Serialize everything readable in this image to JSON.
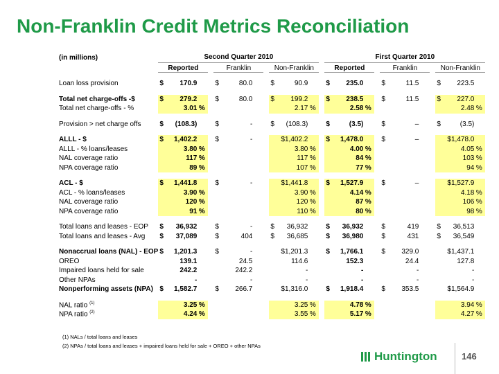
{
  "title": "Non-Franklin Credit Metrics Reconciliation",
  "table": {
    "units": "(in millions)",
    "periods": [
      "Second Quarter 2010",
      "First Quarter 2010"
    ],
    "columns": [
      "Reported",
      "Franklin",
      "Non-Franklin",
      "Reported",
      "Franklin",
      "Non-Franklin"
    ],
    "groups": [
      {
        "rows": [
          {
            "label": "Loan loss provision",
            "cells": [
              {
                "c": "$",
                "v": "170.9"
              },
              {
                "c": "$",
                "v": "80.0"
              },
              {
                "c": "$",
                "v": "90.9"
              },
              {
                "c": "$",
                "v": "235.0"
              },
              {
                "c": "$",
                "v": "11.5"
              },
              {
                "c": "$",
                "v": "223.5"
              }
            ]
          }
        ]
      },
      {
        "rows": [
          {
            "label": "Total net charge-offs -$",
            "bold": true,
            "highlight": true,
            "cells": [
              {
                "c": "$",
                "v": "279.2"
              },
              {
                "c": "$",
                "v": "80.0"
              },
              {
                "c": "$",
                "v": "199.2"
              },
              {
                "c": "$",
                "v": "238.5"
              },
              {
                "c": "$",
                "v": "11.5"
              },
              {
                "c": "$",
                "v": "227.0"
              }
            ]
          },
          {
            "label": "Total net charge-offs - %",
            "highlight": true,
            "cells": [
              {
                "v": "3.01",
                "u": "%"
              },
              null,
              {
                "v": "2.17",
                "u": "%"
              },
              {
                "v": "2.58",
                "u": "%"
              },
              null,
              {
                "v": "2.48",
                "u": "%"
              }
            ]
          }
        ]
      },
      {
        "rows": [
          {
            "label": "Provision > net charge offs",
            "cells": [
              {
                "c": "$",
                "v": "(108.3)"
              },
              {
                "c": "$",
                "v": "-"
              },
              {
                "c": "$",
                "v": "(108.3)"
              },
              {
                "c": "$",
                "v": "(3.5)"
              },
              {
                "c": "$",
                "v": "–"
              },
              {
                "c": "$",
                "v": "(3.5)"
              }
            ]
          }
        ]
      },
      {
        "rows": [
          {
            "label": "ALLL - $",
            "bold": true,
            "highlight": true,
            "cells": [
              {
                "c": "$",
                "v": "1,402.2"
              },
              {
                "c": "$",
                "v": "-"
              },
              {
                "v": "$1,402.2"
              },
              {
                "c": "$",
                "v": "1,478.0"
              },
              {
                "c": "$",
                "v": "–"
              },
              {
                "v": "$1,478.0"
              }
            ]
          },
          {
            "label": "ALLL - % loans/leases",
            "highlight": true,
            "cells": [
              {
                "v": "3.80",
                "u": "%"
              },
              null,
              {
                "v": "3.80",
                "u": "%"
              },
              {
                "v": "4.00",
                "u": "%"
              },
              null,
              {
                "v": "4.05",
                "u": "%"
              }
            ]
          },
          {
            "label": "NAL coverage ratio",
            "highlight": true,
            "cells": [
              {
                "v": "117",
                "u": "%"
              },
              null,
              {
                "v": "117",
                "u": "%"
              },
              {
                "v": "84",
                "u": "%"
              },
              null,
              {
                "v": "103",
                "u": "%"
              }
            ]
          },
          {
            "label": "NPA coverage ratio",
            "highlight": true,
            "cells": [
              {
                "v": "89",
                "u": "%"
              },
              null,
              {
                "v": "107",
                "u": "%"
              },
              {
                "v": "77",
                "u": "%"
              },
              null,
              {
                "v": "94",
                "u": "%"
              }
            ]
          }
        ]
      },
      {
        "rows": [
          {
            "label": "ACL - $",
            "bold": true,
            "highlight": true,
            "cells": [
              {
                "c": "$",
                "v": "1,441.8"
              },
              {
                "c": "$",
                "v": "-"
              },
              {
                "v": "$1,441.8"
              },
              {
                "c": "$",
                "v": "1,527.9"
              },
              {
                "c": "$",
                "v": "–"
              },
              {
                "v": "$1,527.9"
              }
            ]
          },
          {
            "label": "ACL - % loans/leases",
            "highlight": true,
            "cells": [
              {
                "v": "3.90",
                "u": "%"
              },
              null,
              {
                "v": "3.90",
                "u": "%"
              },
              {
                "v": "4.14",
                "u": "%"
              },
              null,
              {
                "v": "4.18",
                "u": "%"
              }
            ]
          },
          {
            "label": "NAL coverage ratio",
            "highlight": true,
            "cells": [
              {
                "v": "120",
                "u": "%"
              },
              null,
              {
                "v": "120",
                "u": "%"
              },
              {
                "v": "87",
                "u": "%"
              },
              null,
              {
                "v": "106",
                "u": "%"
              }
            ]
          },
          {
            "label": "NPA coverage ratio",
            "highlight": true,
            "cells": [
              {
                "v": "91",
                "u": "%"
              },
              null,
              {
                "v": "110",
                "u": "%"
              },
              {
                "v": "80",
                "u": "%"
              },
              null,
              {
                "v": "98",
                "u": "%"
              }
            ]
          }
        ]
      },
      {
        "rows": [
          {
            "label": "Total loans and leases - EOP",
            "cells": [
              {
                "c": "$",
                "v": "36,932"
              },
              {
                "c": "$",
                "v": "-"
              },
              {
                "c": "$",
                "v": "36,932"
              },
              {
                "c": "$",
                "v": "36,932"
              },
              {
                "c": "$",
                "v": "419"
              },
              {
                "c": "$",
                "v": "36,513"
              }
            ]
          },
          {
            "label": "Total loans and leases - Avg",
            "cells": [
              {
                "c": "$",
                "v": "37,089"
              },
              {
                "c": "$",
                "v": "404"
              },
              {
                "c": "$",
                "v": "36,685"
              },
              {
                "c": "$",
                "v": "36,980"
              },
              {
                "c": "$",
                "v": "431"
              },
              {
                "c": "$",
                "v": "36,549"
              }
            ]
          }
        ]
      },
      {
        "rows": [
          {
            "label": "Nonaccrual loans (NAL) - EOP",
            "bold": true,
            "cells": [
              {
                "c": "$",
                "v": "1,201.3"
              },
              {
                "c": "$",
                "v": "-"
              },
              {
                "v": "$1,201.3"
              },
              {
                "c": "$",
                "v": "1,766.1"
              },
              {
                "c": "$",
                "v": "329.0"
              },
              {
                "v": "$1,437.1"
              }
            ]
          },
          {
            "label": "OREO",
            "cells": [
              {
                "v": "139.1"
              },
              {
                "v": "24.5"
              },
              {
                "v": "114.6"
              },
              {
                "v": "152.3"
              },
              {
                "v": "24.4"
              },
              {
                "v": "127.8"
              }
            ]
          },
          {
            "label": "Impaired loans held for sale",
            "cells": [
              {
                "v": "242.2"
              },
              {
                "v": "242.2"
              },
              {
                "v": "-"
              },
              {
                "v": "-"
              },
              {
                "v": "-"
              },
              {
                "v": "-"
              }
            ]
          },
          {
            "label": "Other NPAs",
            "cells": [
              {
                "v": "-"
              },
              {
                "v": "-"
              },
              {
                "v": "-"
              },
              {
                "v": "-"
              },
              {
                "v": "-"
              },
              {
                "v": "-"
              }
            ]
          },
          {
            "label": "Nonperforming assets (NPA)",
            "bold": true,
            "cells": [
              {
                "c": "$",
                "v": "1,582.7"
              },
              {
                "c": "$",
                "v": "266.7"
              },
              {
                "v": "$1,316.0"
              },
              {
                "c": "$",
                "v": "1,918.4"
              },
              {
                "c": "$",
                "v": "353.5"
              },
              {
                "v": "$1,564.9"
              }
            ]
          }
        ]
      },
      {
        "rows": [
          {
            "label": "NAL ratio",
            "note": "(1)",
            "highlight": true,
            "cells": [
              {
                "v": "3.25",
                "u": "%"
              },
              null,
              {
                "v": "3.25",
                "u": "%"
              },
              {
                "v": "4.78",
                "u": "%"
              },
              null,
              {
                "v": "3.94",
                "u": "%"
              }
            ]
          },
          {
            "label": "NPA ratio",
            "note": "(2)",
            "highlight": true,
            "cells": [
              {
                "v": "4.24",
                "u": "%"
              },
              null,
              {
                "v": "3.55",
                "u": "%"
              },
              {
                "v": "5.17",
                "u": "%"
              },
              null,
              {
                "v": "4.27",
                "u": "%"
              }
            ]
          }
        ]
      }
    ]
  },
  "footnotes": [
    "(1) NALs / total loans and leases",
    "(2) NPAs / total loans and leases + impaired loans held for sale + OREO + other NPAs"
  ],
  "logo": "Huntington",
  "page_number": "146"
}
